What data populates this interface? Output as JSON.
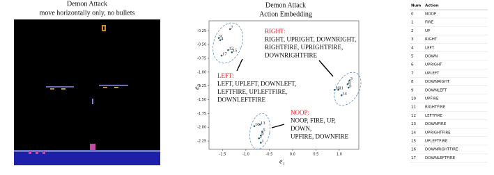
{
  "left_panel": {
    "title": "Demon Attack",
    "subtitle": "move horizontally only,  no bullets"
  },
  "chart_data": {
    "type": "scatter",
    "title": "Demon Attack",
    "subtitle": "Action Embedding",
    "xlabel": "e₁",
    "ylabel": "e₂",
    "color": "#2b5d73",
    "point_labels": [
      "7",
      "9",
      "4",
      "12",
      "15",
      "17",
      "3",
      "8",
      "6",
      "11",
      "14",
      "16",
      "10",
      "13",
      "5",
      "0",
      "2",
      "1"
    ],
    "x": [
      -1.34,
      -1.58,
      -1.55,
      -1.38,
      -1.3,
      -1.52,
      1.22,
      1.18,
      1.2,
      0.98,
      1.05,
      0.9,
      -0.82,
      -0.7,
      -0.65,
      -0.68,
      -0.72,
      -0.68
    ],
    "y": [
      -0.22,
      -0.38,
      -0.42,
      -0.6,
      -0.64,
      -0.7,
      -1.15,
      -1.22,
      -1.28,
      -1.32,
      -1.42,
      -1.32,
      -1.98,
      -1.95,
      -2.08,
      -2.15,
      -2.2,
      -2.28
    ],
    "xlim": [
      -1.79,
      1.42
    ],
    "ylim": [
      -2.4,
      -0.07
    ],
    "xticks": [
      -1.5,
      {
        "value": -1.0,
        "label": "-1.0"
      },
      -0.5,
      {
        "value": 0.0,
        "label": "0.0"
      },
      0.5,
      {
        "value": 1.0,
        "label": "1.0"
      }
    ],
    "yticks": [
      -0.25,
      {
        "value": -0.5,
        "label": "-0.50"
      },
      -0.75,
      {
        "value": -1.0,
        "label": "-1.00"
      },
      -1.25,
      {
        "value": -1.5,
        "label": "-1.50"
      },
      -1.75,
      {
        "value": -2.0,
        "label": "-2.00"
      },
      -2.25
    ],
    "annotations": [
      {
        "heading": "RIGHT:",
        "lines": [
          "RIGHT, UPRIGHT,  DOWNRIGHT,",
          "RIGHTFIRE, UPRIGHTFIRE,",
          "DOWNRIGHTFIRE"
        ]
      },
      {
        "heading": "LEFT:",
        "lines": [
          "LEFT, UPLEFT,  DOWNLEFT,",
          "LEFTFIRE, UPLEFTFIRE,",
          "DOWNLEFTFIRE"
        ]
      },
      {
        "heading": "NOOP:",
        "lines": [
          "NOOP, FIRE, UP,",
          "DOWN,",
          "UPFIRE, DOWNFIRE"
        ]
      }
    ]
  },
  "table": {
    "header": [
      "Num",
      "Action"
    ],
    "rows": [
      [
        "0",
        "NOOP"
      ],
      [
        "1",
        "FIRE"
      ],
      [
        "2",
        "UP"
      ],
      [
        "3",
        "RIGHT"
      ],
      [
        "4",
        "LEFT"
      ],
      [
        "5",
        "DOWN"
      ],
      [
        "6",
        "UPRIGHT"
      ],
      [
        "7",
        "UPLEFT"
      ],
      [
        "8",
        "DOWNRIGHT"
      ],
      [
        "9",
        "DOWNLEFT"
      ],
      [
        "10",
        "UPFIRE"
      ],
      [
        "11",
        "RIGHTFIRE"
      ],
      [
        "12",
        "LEFTFIRE"
      ],
      [
        "13",
        "DOWNFIRE"
      ],
      [
        "14",
        "UPRIGHTFIRE"
      ],
      [
        "15",
        "UPLEFTFIRE"
      ],
      [
        "16",
        "DOWNRIGHTFIRE"
      ],
      [
        "17",
        "DOWNLEFTFIRE"
      ]
    ]
  }
}
